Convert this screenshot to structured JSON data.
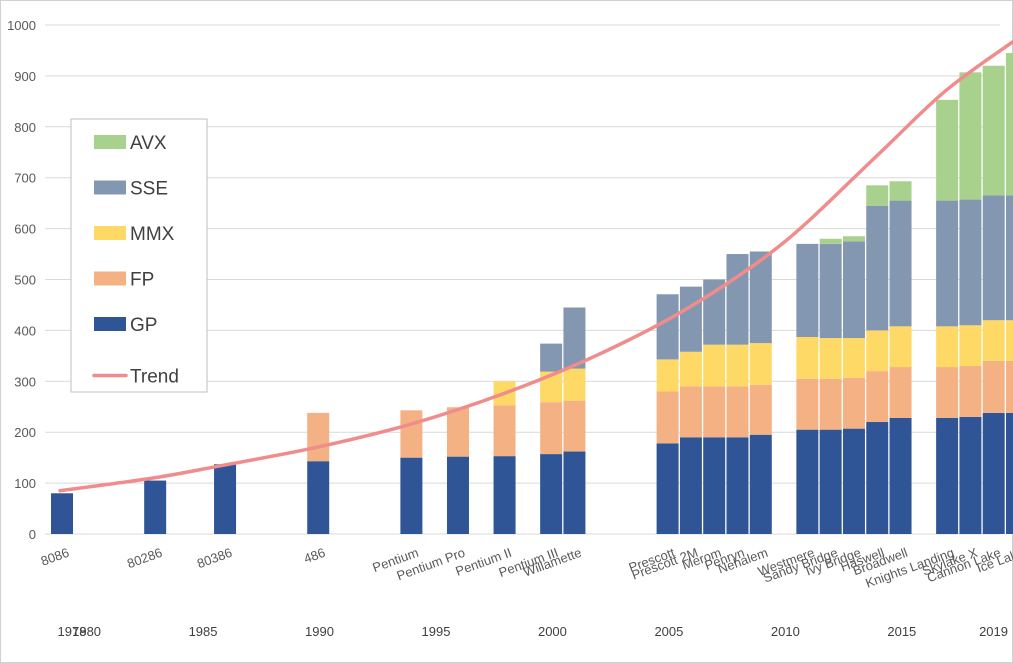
{
  "chart_data": {
    "type": "bar",
    "stacked": true,
    "ylim": [
      0,
      1000
    ],
    "y_ticks": [
      0,
      100,
      200,
      300,
      400,
      500,
      600,
      700,
      800,
      900,
      1000
    ],
    "grid": "horizontal",
    "legend_position": "left",
    "year_axis": [
      "1978",
      "1980",
      "1985",
      "1990",
      "1995",
      "2000",
      "2005",
      "2010",
      "2015",
      "2019"
    ],
    "series": [
      {
        "name": "GP",
        "color": "#2f5597"
      },
      {
        "name": "FP",
        "color": "#f4b183"
      },
      {
        "name": "MMX",
        "color": "#ffd966"
      },
      {
        "name": "SSE",
        "color": "#8497b0"
      },
      {
        "name": "AVX",
        "color": "#a9d18e"
      }
    ],
    "trend": {
      "name": "Trend",
      "color": "#f08c8c"
    },
    "processors": [
      {
        "label": "8086",
        "year": 1978,
        "GP": 80,
        "FP": 0,
        "MMX": 0,
        "SSE": 0,
        "AVX": 0
      },
      {
        "label": "80286",
        "year": 1982,
        "GP": 105,
        "FP": 0,
        "MMX": 0,
        "SSE": 0,
        "AVX": 0
      },
      {
        "label": "80386",
        "year": 1985,
        "GP": 137,
        "FP": 0,
        "MMX": 0,
        "SSE": 0,
        "AVX": 0
      },
      {
        "label": "486",
        "year": 1989,
        "GP": 143,
        "FP": 95,
        "MMX": 0,
        "SSE": 0,
        "AVX": 0
      },
      {
        "label": "Pentium",
        "year": 1993,
        "GP": 150,
        "FP": 93,
        "MMX": 0,
        "SSE": 0,
        "AVX": 0
      },
      {
        "label": "Pentium Pro",
        "year": 1995,
        "GP": 152,
        "FP": 97,
        "MMX": 0,
        "SSE": 0,
        "AVX": 0
      },
      {
        "label": "Pentium II",
        "year": 1997,
        "GP": 153,
        "FP": 100,
        "MMX": 47,
        "SSE": 0,
        "AVX": 0
      },
      {
        "label": "Pentium III",
        "year": 1999,
        "GP": 157,
        "FP": 102,
        "MMX": 60,
        "SSE": 55,
        "AVX": 0
      },
      {
        "label": "Willamette",
        "year": 2000,
        "GP": 162,
        "FP": 100,
        "MMX": 63,
        "SSE": 120,
        "AVX": 0
      },
      {
        "label": "Prescott",
        "year": 2004,
        "GP": 178,
        "FP": 102,
        "MMX": 63,
        "SSE": 128,
        "AVX": 0
      },
      {
        "label": "Prescott 2M",
        "year": 2005,
        "GP": 190,
        "FP": 100,
        "MMX": 68,
        "SSE": 128,
        "AVX": 0
      },
      {
        "label": "Merom",
        "year": 2006,
        "GP": 190,
        "FP": 100,
        "MMX": 82,
        "SSE": 128,
        "AVX": 0
      },
      {
        "label": "Penryn",
        "year": 2007,
        "GP": 190,
        "FP": 100,
        "MMX": 82,
        "SSE": 178,
        "AVX": 0
      },
      {
        "label": "Nehalem",
        "year": 2008,
        "GP": 195,
        "FP": 98,
        "MMX": 82,
        "SSE": 180,
        "AVX": 0
      },
      {
        "label": "Westmere",
        "year": 2010,
        "GP": 205,
        "FP": 100,
        "MMX": 82,
        "SSE": 183,
        "AVX": 0
      },
      {
        "label": "Sandy Bridge",
        "year": 2011,
        "GP": 205,
        "FP": 100,
        "MMX": 80,
        "SSE": 185,
        "AVX": 10
      },
      {
        "label": "Ivy Bridge",
        "year": 2012,
        "GP": 207,
        "FP": 100,
        "MMX": 78,
        "SSE": 190,
        "AVX": 10
      },
      {
        "label": "Haswell",
        "year": 2013,
        "GP": 220,
        "FP": 100,
        "MMX": 80,
        "SSE": 245,
        "AVX": 40
      },
      {
        "label": "Broadwell",
        "year": 2014,
        "GP": 228,
        "FP": 100,
        "MMX": 80,
        "SSE": 247,
        "AVX": 38
      },
      {
        "label": "Knights Landing",
        "year": 2016,
        "GP": 228,
        "FP": 100,
        "MMX": 80,
        "SSE": 247,
        "AVX": 198
      },
      {
        "label": "Skylake X",
        "year": 2017,
        "GP": 230,
        "FP": 100,
        "MMX": 80,
        "SSE": 247,
        "AVX": 250
      },
      {
        "label": "Cannon Lake",
        "year": 2018,
        "GP": 238,
        "FP": 102,
        "MMX": 80,
        "SSE": 245,
        "AVX": 255
      },
      {
        "label": "Ice Lake",
        "year": 2019,
        "GP": 238,
        "FP": 102,
        "MMX": 80,
        "SSE": 245,
        "AVX": 280
      }
    ],
    "trend_points": [
      {
        "year": 1978,
        "value": 85
      },
      {
        "year": 1982,
        "value": 110
      },
      {
        "year": 1985,
        "value": 135
      },
      {
        "year": 1989,
        "value": 170
      },
      {
        "year": 1993,
        "value": 215
      },
      {
        "year": 1997,
        "value": 275
      },
      {
        "year": 2001,
        "value": 350
      },
      {
        "year": 2005,
        "value": 445
      },
      {
        "year": 2009,
        "value": 570
      },
      {
        "year": 2013,
        "value": 740
      },
      {
        "year": 2016,
        "value": 870
      },
      {
        "year": 2019,
        "value": 970
      }
    ]
  },
  "legend": {
    "items": [
      {
        "label": "AVX",
        "color": "#a9d18e",
        "kind": "box"
      },
      {
        "label": "SSE",
        "color": "#8497b0",
        "kind": "box"
      },
      {
        "label": "MMX",
        "color": "#ffd966",
        "kind": "box"
      },
      {
        "label": "FP",
        "color": "#f4b183",
        "kind": "box"
      },
      {
        "label": "GP",
        "color": "#2f5597",
        "kind": "box"
      },
      {
        "label": "Trend",
        "color": "#f08c8c",
        "kind": "line"
      }
    ]
  }
}
